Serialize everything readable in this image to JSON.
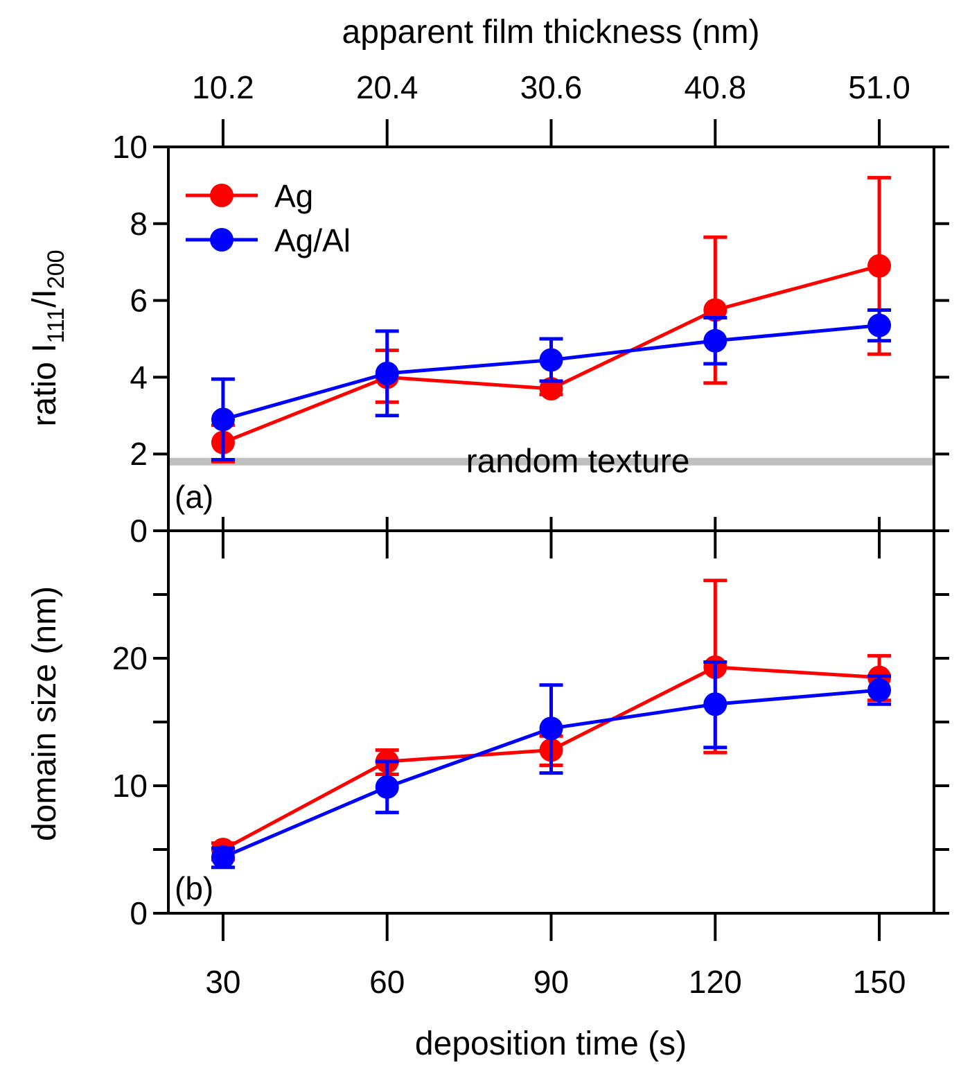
{
  "chart_data": [
    {
      "panel": "(a)",
      "type": "line",
      "top_axis": {
        "label": "apparent film thickness (nm)",
        "ticks": [
          "10.2",
          "20.4",
          "30.6",
          "40.8",
          "51.0"
        ]
      },
      "xlim": [
        20,
        160
      ],
      "x_ticks": [
        30,
        60,
        90,
        120,
        150
      ],
      "ylim": [
        0,
        10
      ],
      "y_ticks": [
        0,
        2,
        4,
        6,
        8,
        10
      ],
      "y_tick_labels": [
        "0",
        "2",
        "4",
        "6",
        "8",
        "10"
      ],
      "ylabel": {
        "main": "ratio I",
        "sub1": "111",
        "mid": "/I",
        "sub2": "200"
      },
      "reference_line": {
        "y": 1.8,
        "label": "random texture",
        "color": "#bfbfbf"
      },
      "legend": {
        "position": "top-left",
        "items": [
          "Ag",
          "Ag/Al"
        ]
      },
      "series": [
        {
          "name": "Ag",
          "color": "#ff0000",
          "x": [
            30,
            60,
            90,
            120,
            150
          ],
          "y": [
            2.3,
            4.0,
            3.7,
            5.75,
            6.9
          ],
          "err_low": [
            1.8,
            3.35,
            3.55,
            3.85,
            4.6
          ],
          "err_high": [
            2.75,
            4.7,
            3.9,
            7.65,
            9.2
          ]
        },
        {
          "name": "Ag/Al",
          "color": "#0000ff",
          "x": [
            30,
            60,
            90,
            120,
            150
          ],
          "y": [
            2.9,
            4.1,
            4.45,
            4.95,
            5.35
          ],
          "err_low": [
            1.85,
            3.0,
            3.9,
            4.35,
            4.95
          ],
          "err_high": [
            3.95,
            5.2,
            5.0,
            5.55,
            5.75
          ]
        }
      ]
    },
    {
      "panel": "(b)",
      "type": "line",
      "xlabel": "deposition time (s)",
      "xlim": [
        20,
        160
      ],
      "x_ticks": [
        30,
        60,
        90,
        120,
        150
      ],
      "x_tick_labels": [
        "30",
        "60",
        "90",
        "120",
        "150"
      ],
      "ylim": [
        0,
        30
      ],
      "y_major_ticks": [
        0,
        10,
        20
      ],
      "y_tick_labels": [
        "0",
        "10",
        "20"
      ],
      "y_minor_ticks": [
        5,
        15,
        25
      ],
      "ylabel": "domain size (nm)",
      "series": [
        {
          "name": "Ag",
          "color": "#ff0000",
          "x": [
            30,
            60,
            90,
            120,
            150
          ],
          "y": [
            5.0,
            11.9,
            12.8,
            19.3,
            18.5
          ],
          "err_low": [
            4.2,
            10.9,
            11.6,
            12.6,
            16.7
          ],
          "err_high": [
            5.5,
            12.8,
            13.9,
            26.1,
            20.2
          ]
        },
        {
          "name": "Ag/Al",
          "color": "#0000ff",
          "x": [
            30,
            60,
            90,
            120,
            150
          ],
          "y": [
            4.4,
            9.9,
            14.5,
            16.4,
            17.5
          ],
          "err_low": [
            3.6,
            7.9,
            11.0,
            13.0,
            16.4
          ],
          "err_high": [
            5.1,
            11.9,
            17.9,
            19.7,
            18.6
          ]
        }
      ]
    }
  ]
}
